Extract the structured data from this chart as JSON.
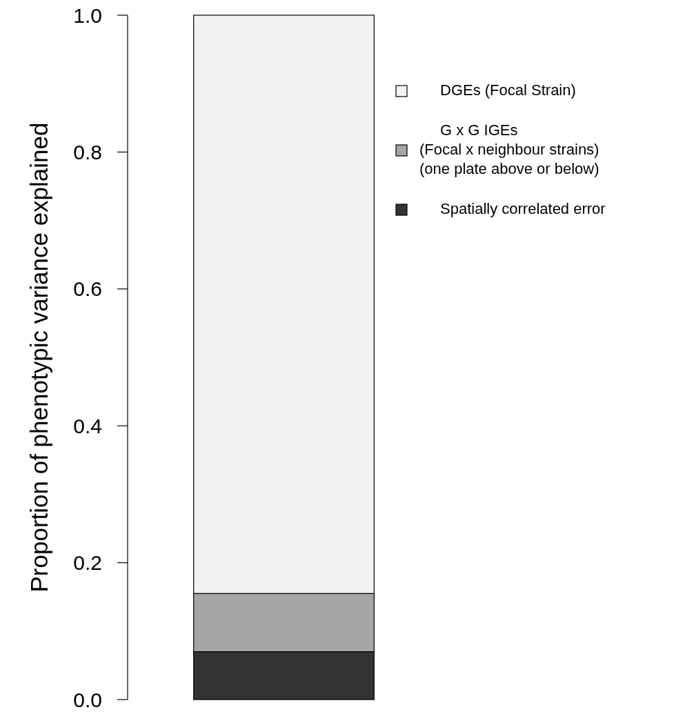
{
  "chart_data": {
    "type": "bar",
    "stacked": true,
    "categories": [
      null
    ],
    "ylabel": "Proportion of phenotypic variance explained",
    "ylim": [
      0,
      1
    ],
    "yticks": [
      {
        "value": 0,
        "label": "0.0"
      },
      {
        "value": 0.2,
        "label": "0.2"
      },
      {
        "value": 0.4,
        "label": "0.4"
      },
      {
        "value": 0.6,
        "label": "0.6"
      },
      {
        "value": 0.8,
        "label": "0.8"
      },
      {
        "value": 1,
        "label": "1.0"
      }
    ],
    "grid": false,
    "legend": "right",
    "series": [
      {
        "name": "Spatially correlated error",
        "color": "#333333",
        "values": [
          0.07
        ]
      },
      {
        "name": "G x G IGEs\n(Focal x neighbour strains)\n(one plate above or below)",
        "color": "#a6a6a6",
        "values": [
          0.085
        ]
      },
      {
        "name": "DGEs (Focal Strain)",
        "color": "#f2f2f2",
        "values": [
          0.845
        ]
      }
    ]
  }
}
